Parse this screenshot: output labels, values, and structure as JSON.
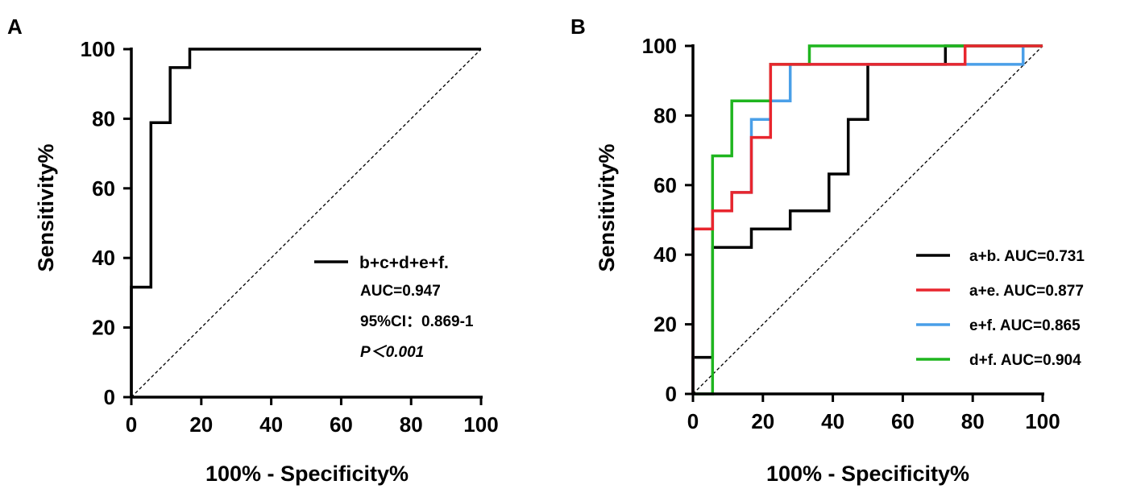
{
  "chart_data": [
    {
      "panel": "A",
      "type": "line",
      "xlabel": "100% - Specificity%",
      "ylabel": "Sensitivity%",
      "xlim": [
        0,
        100
      ],
      "ylim": [
        0,
        100
      ],
      "xticks": [
        "0",
        "20",
        "40",
        "60",
        "80",
        "100"
      ],
      "yticks": [
        "0",
        "20",
        "40",
        "60",
        "80",
        "100"
      ],
      "reference_line": "diagonal dashed",
      "legend": {
        "placement": "center-right",
        "entries": [
          "b+c+d+e+f."
        ],
        "annotations": [
          "AUC=0.947",
          "95%CI：0.869-1",
          "P＜0.001"
        ]
      },
      "series": [
        {
          "name": "b+c+d+e+f.",
          "color": "#000000",
          "points": [
            [
              0,
              0
            ],
            [
              0,
              31.6
            ],
            [
              5.6,
              31.6
            ],
            [
              5.6,
              78.9
            ],
            [
              11.1,
              78.9
            ],
            [
              11.1,
              94.7
            ],
            [
              16.7,
              94.7
            ],
            [
              16.7,
              100
            ],
            [
              100,
              100
            ]
          ]
        }
      ]
    },
    {
      "panel": "B",
      "type": "line",
      "xlabel": "100% - Specificity%",
      "ylabel": "Sensitivity%",
      "xlim": [
        0,
        100
      ],
      "ylim": [
        0,
        100
      ],
      "xticks": [
        "0",
        "20",
        "40",
        "60",
        "80",
        "100"
      ],
      "yticks": [
        "0",
        "20",
        "40",
        "60",
        "80",
        "100"
      ],
      "reference_line": "diagonal dashed",
      "legend": {
        "placement": "bottom-right"
      },
      "series": [
        {
          "name": "a+b. AUC=0.731",
          "color": "#000000",
          "points": [
            [
              0,
              0
            ],
            [
              0,
              10.5
            ],
            [
              5.6,
              10.5
            ],
            [
              5.6,
              42.1
            ],
            [
              16.7,
              42.1
            ],
            [
              16.7,
              47.4
            ],
            [
              27.8,
              47.4
            ],
            [
              27.8,
              52.6
            ],
            [
              38.9,
              52.6
            ],
            [
              38.9,
              63.2
            ],
            [
              44.4,
              63.2
            ],
            [
              44.4,
              78.9
            ],
            [
              50,
              78.9
            ],
            [
              50,
              94.7
            ],
            [
              72.2,
              94.7
            ],
            [
              72.2,
              100
            ],
            [
              100,
              100
            ]
          ]
        },
        {
          "name": "e+f. AUC=0.865",
          "color": "#4a9fe8",
          "points": [
            [
              0,
              0
            ],
            [
              0,
              47.4
            ],
            [
              5.6,
              47.4
            ],
            [
              5.6,
              52.6
            ],
            [
              11.1,
              52.6
            ],
            [
              11.1,
              57.9
            ],
            [
              16.7,
              57.9
            ],
            [
              16.7,
              78.9
            ],
            [
              22.2,
              78.9
            ],
            [
              22.2,
              84.2
            ],
            [
              27.8,
              84.2
            ],
            [
              27.8,
              94.7
            ],
            [
              94.4,
              94.7
            ],
            [
              94.4,
              100
            ],
            [
              100,
              100
            ]
          ]
        },
        {
          "name": "d+f. AUC=0.904",
          "color": "#1fb51f",
          "points": [
            [
              0,
              0
            ],
            [
              5.6,
              0
            ],
            [
              5.6,
              68.4
            ],
            [
              11.1,
              68.4
            ],
            [
              11.1,
              84.2
            ],
            [
              22.2,
              84.2
            ],
            [
              22.2,
              94.7
            ],
            [
              33.3,
              94.7
            ],
            [
              33.3,
              100
            ],
            [
              100,
              100
            ]
          ]
        },
        {
          "name": "a+e. AUC=0.877",
          "color": "#e8262e",
          "points": [
            [
              0,
              0
            ],
            [
              0,
              47.4
            ],
            [
              5.6,
              47.4
            ],
            [
              5.6,
              52.6
            ],
            [
              11.1,
              52.6
            ],
            [
              11.1,
              57.9
            ],
            [
              16.7,
              57.9
            ],
            [
              16.7,
              73.7
            ],
            [
              22.2,
              73.7
            ],
            [
              22.2,
              94.7
            ],
            [
              77.8,
              94.7
            ],
            [
              77.8,
              100
            ],
            [
              100,
              100
            ]
          ]
        }
      ],
      "legend_order": [
        0,
        3,
        1,
        2
      ]
    }
  ]
}
